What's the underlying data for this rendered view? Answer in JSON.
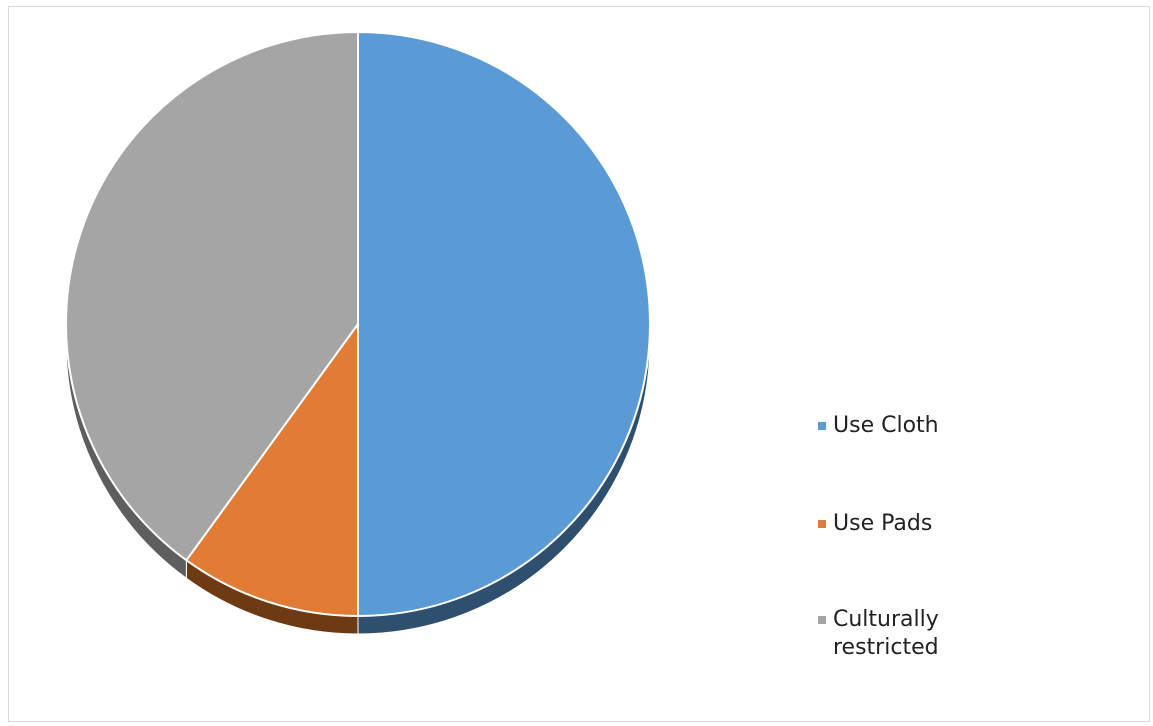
{
  "chart_data": {
    "type": "pie",
    "style": "3d",
    "title": "",
    "slices": [
      {
        "label": "Use Cloth",
        "value": 50,
        "color": "#5b9bd5",
        "side_color": "#2e4f6e"
      },
      {
        "label": "Use Pads",
        "value": 10,
        "color": "#e27c35",
        "side_color": "#6e3a14"
      },
      {
        "label": "Culturally restricted",
        "value": 40,
        "color": "#a5a5a5",
        "side_color": "#5e5e5e"
      }
    ],
    "legend_position": "right"
  }
}
